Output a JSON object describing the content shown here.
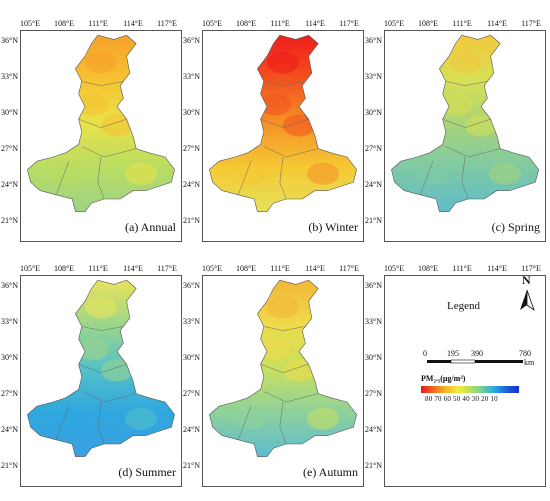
{
  "panels": [
    {
      "id": "annual",
      "label": "(a) Annual",
      "palette": "annual"
    },
    {
      "id": "winter",
      "label": "(b) Winter",
      "palette": "winter"
    },
    {
      "id": "spring",
      "label": "(c) Spring",
      "palette": "spring"
    },
    {
      "id": "summer",
      "label": "(d) Summer",
      "palette": "summer"
    },
    {
      "id": "autumn",
      "label": "(e) Autumn",
      "palette": "autumn"
    }
  ],
  "axes": {
    "x_ticks": [
      "105°E",
      "108°E",
      "111°E",
      "114°E",
      "117°E"
    ],
    "y_ticks": [
      "36°N",
      "33°N",
      "30°N",
      "27°N",
      "24°N",
      "21°N"
    ]
  },
  "legend": {
    "title": "Legend",
    "north": "N",
    "scale": {
      "labels": [
        "0",
        "195",
        "390",
        "780"
      ],
      "unit": "km"
    },
    "colorbar": {
      "title": "PM₂.₅(μg/m³)",
      "ticks": "80 70 60 50 40 30 20 10",
      "colors": [
        "#e8161b",
        "#f06a21",
        "#f7b52a",
        "#f3ea3b",
        "#b8e05a",
        "#6fcfa0",
        "#2aa7e6",
        "#1b5fd6",
        "#1a2ecf"
      ]
    }
  },
  "palettes": {
    "annual": [
      "#f7a12a",
      "#f6c232",
      "#e9e24a",
      "#b9dc62",
      "#9fd485"
    ],
    "winter": [
      "#ef1d1c",
      "#f2521f",
      "#f59127",
      "#f5c934",
      "#e6e05a"
    ],
    "spring": [
      "#f3c83d",
      "#d8df55",
      "#a8d478",
      "#7fcaa4",
      "#5fbcc9"
    ],
    "summer": [
      "#e9e35a",
      "#9dd68a",
      "#55c1c7",
      "#2fa7df",
      "#3aa0e0"
    ],
    "autumn": [
      "#f4b638",
      "#eedb4b",
      "#c8e05d",
      "#8ed19b",
      "#5dbcd1"
    ]
  }
}
